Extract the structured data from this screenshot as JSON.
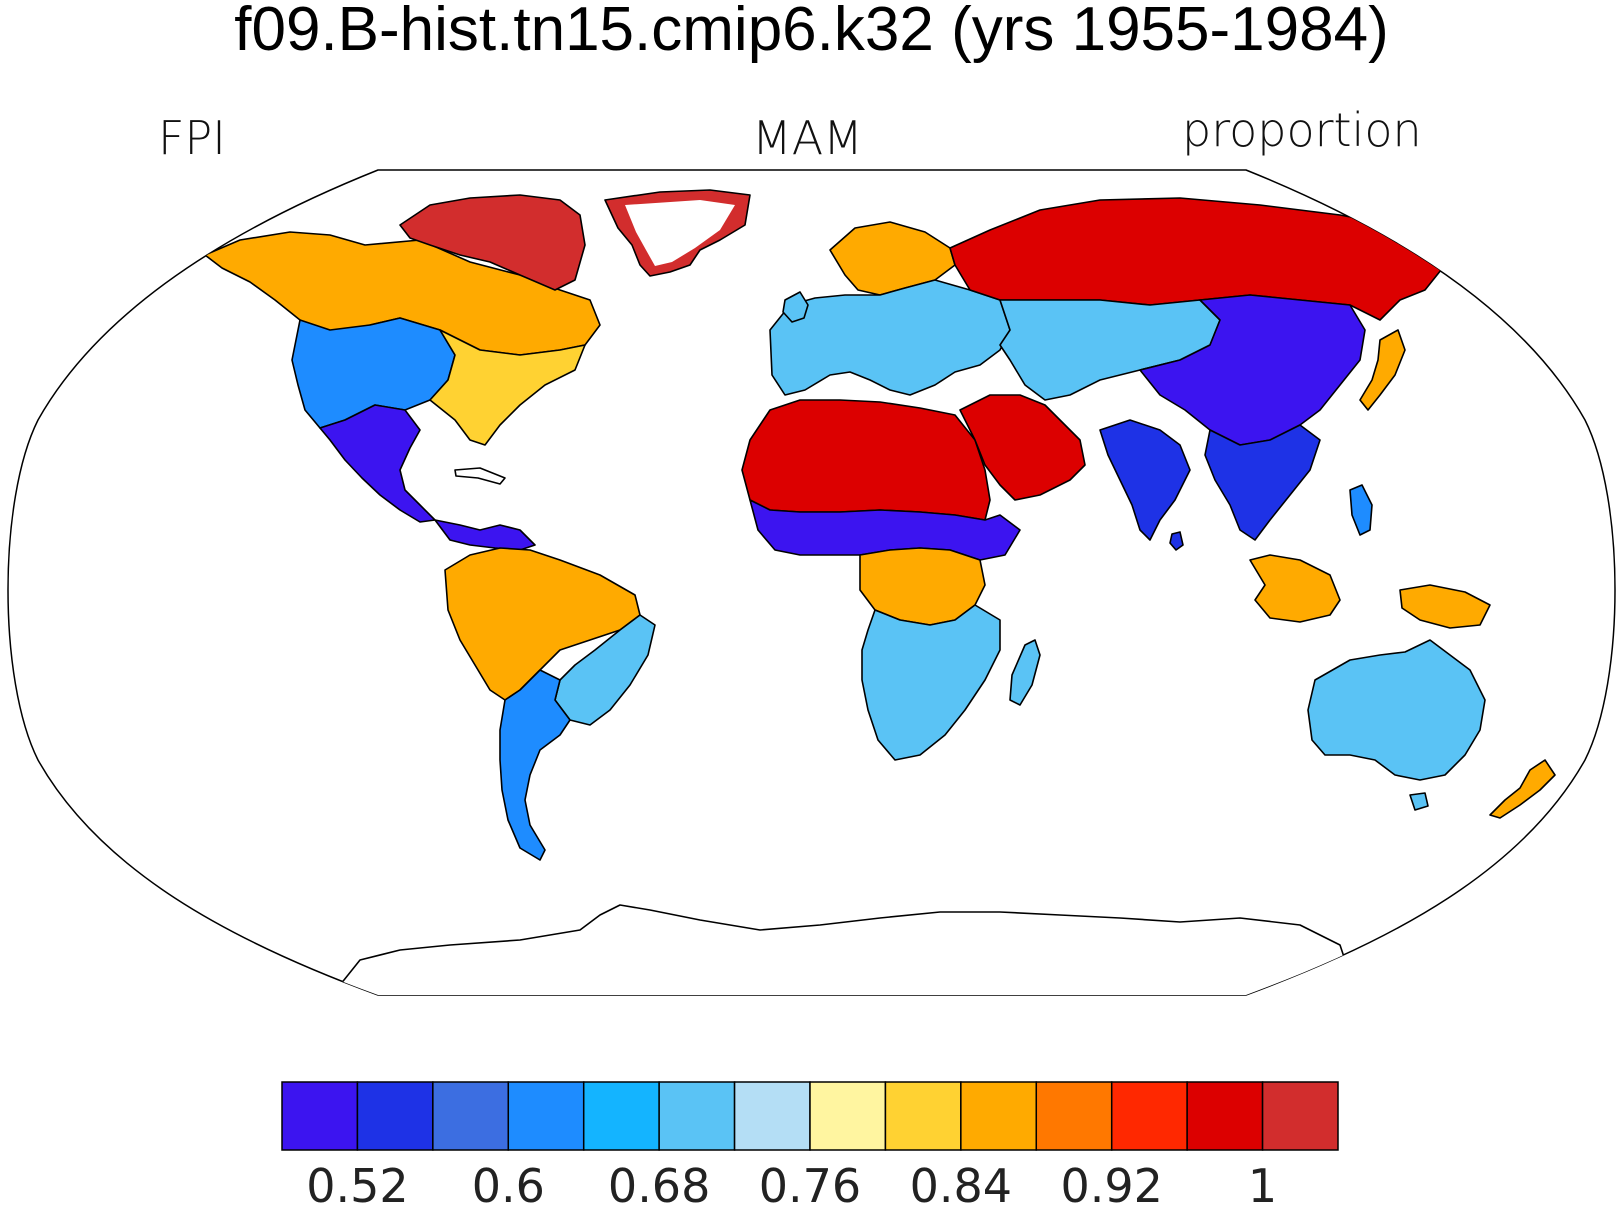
{
  "title": "f09.B-hist.tn15.cmip6.k32 (yrs 1955-1984)",
  "subtitle_left": "FPI",
  "subtitle_center": "MAM",
  "subtitle_right": "proportion",
  "projection": "robinson",
  "colorbar": {
    "colors": [
      "#3c14f0",
      "#1e32e6",
      "#3c6ee1",
      "#1e8cff",
      "#14b4ff",
      "#5ac3f5",
      "#b4def5",
      "#fff5a0",
      "#ffd232",
      "#ffaa00",
      "#ff7800",
      "#ff2800",
      "#dc0000",
      "#d22d2d"
    ],
    "tick_labels": [
      "0.52",
      "0.6",
      "0.68",
      "0.76",
      "0.84",
      "0.92",
      "1"
    ],
    "tick_after_box": [
      0,
      2,
      4,
      6,
      8,
      10,
      12
    ]
  },
  "regions": [
    {
      "name": "canadian-arctic",
      "color": "#d22d2d"
    },
    {
      "name": "greenland-margin",
      "color": "#d22d2d"
    },
    {
      "name": "alaska-canada",
      "color": "#ffaa00"
    },
    {
      "name": "western-us",
      "color": "#1e8cff"
    },
    {
      "name": "eastern-us",
      "color": "#ffd232"
    },
    {
      "name": "mexico",
      "color": "#3c14f0"
    },
    {
      "name": "central-america",
      "color": "#3c14f0"
    },
    {
      "name": "amazon",
      "color": "#ffaa00"
    },
    {
      "name": "south-america-east",
      "color": "#5ac3f5"
    },
    {
      "name": "south-america-south",
      "color": "#1e8cff"
    },
    {
      "name": "europe",
      "color": "#5ac3f5"
    },
    {
      "name": "scandinavia",
      "color": "#ffaa00"
    },
    {
      "name": "siberia",
      "color": "#dc0000"
    },
    {
      "name": "central-asia",
      "color": "#5ac3f5"
    },
    {
      "name": "east-asia",
      "color": "#3c14f0"
    },
    {
      "name": "sahara",
      "color": "#dc0000"
    },
    {
      "name": "arabia",
      "color": "#dc0000"
    },
    {
      "name": "sahel",
      "color": "#3c14f0"
    },
    {
      "name": "central-africa",
      "color": "#ffaa00"
    },
    {
      "name": "southern-africa",
      "color": "#5ac3f5"
    },
    {
      "name": "madagascar",
      "color": "#5ac3f5"
    },
    {
      "name": "india",
      "color": "#1e32e6"
    },
    {
      "name": "southeast-asia",
      "color": "#1e32e6"
    },
    {
      "name": "indonesia",
      "color": "#ffaa00"
    },
    {
      "name": "new-guinea",
      "color": "#ffaa00"
    },
    {
      "name": "australia",
      "color": "#5ac3f5"
    },
    {
      "name": "new-zealand",
      "color": "#ffaa00"
    },
    {
      "name": "japan",
      "color": "#ffaa00"
    },
    {
      "name": "antarctica",
      "color": "#ffffff"
    }
  ]
}
